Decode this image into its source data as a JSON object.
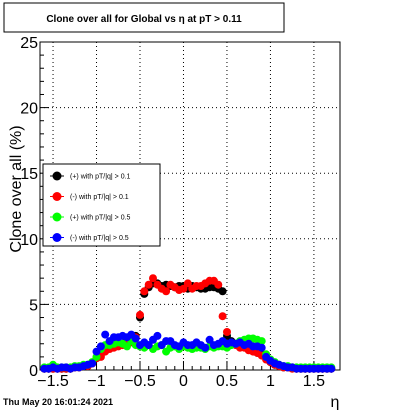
{
  "title": "Clone  over all for Global vs   η at pT > 0.11",
  "datestamp": "Thu May 20 16:01:24 2021",
  "chart_data": {
    "type": "scatter",
    "title": "Clone  over all for Global vs   η at pT > 0.11",
    "xlabel": "η",
    "ylabel": "Clone  over all (%)",
    "xlim": [
      -1.65,
      1.8
    ],
    "ylim": [
      0,
      25
    ],
    "x_ticks": [
      -1.5,
      -1,
      -0.5,
      0,
      0.5,
      1,
      1.5
    ],
    "x_tick_labels": [
      "−1.5",
      "−1",
      "−0.5",
      "0",
      "0.5",
      "1",
      "1.5"
    ],
    "y_ticks": [
      0,
      5,
      10,
      15,
      20,
      25
    ],
    "y_tick_labels": [
      "0",
      "5",
      "10",
      "15",
      "20",
      "25"
    ],
    "grid": true,
    "legend_position": "left, middle",
    "series": [
      {
        "name": "(+) with pT/|q| > 0.1",
        "color": "#000000",
        "x": [
          -1.6,
          -1.55,
          -1.5,
          -1.45,
          -1.4,
          -1.35,
          -1.3,
          -1.25,
          -1.2,
          -1.15,
          -1.1,
          -1.05,
          -1.0,
          -0.95,
          -0.9,
          -0.85,
          -0.8,
          -0.75,
          -0.7,
          -0.65,
          -0.6,
          -0.55,
          -0.5,
          -0.45,
          -0.4,
          -0.35,
          -0.3,
          -0.25,
          -0.2,
          -0.15,
          -0.1,
          -0.05,
          0.0,
          0.05,
          0.1,
          0.15,
          0.2,
          0.25,
          0.3,
          0.35,
          0.4,
          0.45,
          0.5,
          0.55,
          0.6,
          0.65,
          0.7,
          0.75,
          0.8,
          0.85,
          0.9,
          0.95,
          1.0,
          1.05,
          1.1,
          1.15,
          1.2,
          1.25,
          1.3,
          1.35,
          1.4,
          1.45,
          1.5,
          1.55,
          1.6,
          1.65,
          1.7
        ],
        "y": [
          0.1,
          0.1,
          0.1,
          0.1,
          0.1,
          0.1,
          0.1,
          0.2,
          0.2,
          0.3,
          0.3,
          0.5,
          0.9,
          1.2,
          1.5,
          1.7,
          1.8,
          1.9,
          2.0,
          2.2,
          2.4,
          2.6,
          4.0,
          5.8,
          6.3,
          6.6,
          6.6,
          6.4,
          6.5,
          6.4,
          6.3,
          6.4,
          6.4,
          6.2,
          6.4,
          6.3,
          6.2,
          6.2,
          6.3,
          6.3,
          6.2,
          6.0,
          2.6,
          2.2,
          2.0,
          1.8,
          1.8,
          1.6,
          1.5,
          1.3,
          1.2,
          0.9,
          0.6,
          0.4,
          0.3,
          0.2,
          0.2,
          0.2,
          0.1,
          0.1,
          0.1,
          0.1,
          0.1,
          0.1,
          0.1,
          0.1,
          0.1
        ]
      },
      {
        "name": "(-) with pT/|q| > 0.1",
        "color": "#ff0000",
        "x": [
          -1.6,
          -1.55,
          -1.5,
          -1.45,
          -1.4,
          -1.35,
          -1.3,
          -1.25,
          -1.2,
          -1.15,
          -1.1,
          -1.05,
          -1.0,
          -0.95,
          -0.9,
          -0.85,
          -0.8,
          -0.75,
          -0.7,
          -0.65,
          -0.6,
          -0.55,
          -0.5,
          -0.45,
          -0.4,
          -0.35,
          -0.3,
          -0.25,
          -0.2,
          -0.15,
          -0.1,
          -0.05,
          0.0,
          0.05,
          0.1,
          0.15,
          0.2,
          0.25,
          0.3,
          0.35,
          0.4,
          0.45,
          0.5,
          0.55,
          0.6,
          0.65,
          0.7,
          0.75,
          0.8,
          0.85,
          0.9,
          0.95,
          1.0,
          1.05,
          1.1,
          1.15,
          1.2,
          1.25,
          1.3,
          1.35,
          1.4,
          1.45,
          1.5,
          1.55,
          1.6,
          1.65,
          1.7
        ],
        "y": [
          0.1,
          0.1,
          0.1,
          0.1,
          0.1,
          0.1,
          0.1,
          0.2,
          0.2,
          0.3,
          0.3,
          0.5,
          0.9,
          1.0,
          1.4,
          1.6,
          1.7,
          1.8,
          1.9,
          2.0,
          2.1,
          2.5,
          4.2,
          6.0,
          6.5,
          7.0,
          6.5,
          6.2,
          6.0,
          6.5,
          6.3,
          6.1,
          6.2,
          6.6,
          6.2,
          6.4,
          6.4,
          6.6,
          6.8,
          6.8,
          6.5,
          4.1,
          2.9,
          2.0,
          1.9,
          1.7,
          1.7,
          1.5,
          1.4,
          1.3,
          1.1,
          0.8,
          0.6,
          0.4,
          0.3,
          0.2,
          0.2,
          0.1,
          0.1,
          0.1,
          0.1,
          0.1,
          0.1,
          0.1,
          0.1,
          0.1,
          0.1
        ]
      },
      {
        "name": "(+) with pT/|q| > 0.5",
        "color": "#00ff00",
        "x": [
          -1.6,
          -1.55,
          -1.5,
          -1.45,
          -1.4,
          -1.35,
          -1.3,
          -1.25,
          -1.2,
          -1.15,
          -1.1,
          -1.05,
          -1.0,
          -0.95,
          -0.9,
          -0.85,
          -0.8,
          -0.75,
          -0.7,
          -0.65,
          -0.6,
          -0.55,
          -0.5,
          -0.45,
          -0.4,
          -0.35,
          -0.3,
          -0.25,
          -0.2,
          -0.15,
          -0.1,
          -0.05,
          0.0,
          0.05,
          0.1,
          0.15,
          0.2,
          0.25,
          0.3,
          0.35,
          0.4,
          0.45,
          0.5,
          0.55,
          0.6,
          0.65,
          0.7,
          0.75,
          0.8,
          0.85,
          0.9,
          0.95,
          1.0,
          1.05,
          1.1,
          1.15,
          1.2,
          1.25,
          1.3,
          1.35,
          1.4,
          1.45,
          1.5,
          1.55,
          1.6,
          1.65,
          1.7
        ],
        "y": [
          0.2,
          0.2,
          0.4,
          0.2,
          0.2,
          0.2,
          0.2,
          0.3,
          0.3,
          0.4,
          0.4,
          0.6,
          1.0,
          1.6,
          1.9,
          1.9,
          2.0,
          2.1,
          2.0,
          1.8,
          2.2,
          1.9,
          1.8,
          1.7,
          1.9,
          1.6,
          1.8,
          1.9,
          1.4,
          1.7,
          1.8,
          1.6,
          1.8,
          1.7,
          1.6,
          1.7,
          1.7,
          1.6,
          1.8,
          1.7,
          1.8,
          1.8,
          1.7,
          1.9,
          2.0,
          2.2,
          2.3,
          2.4,
          2.4,
          2.3,
          2.2,
          1.2,
          0.8,
          0.6,
          0.4,
          0.3,
          0.3,
          0.2,
          0.2,
          0.2,
          0.2,
          0.2,
          0.2,
          0.2,
          0.2,
          0.2,
          0.2
        ]
      },
      {
        "name": "(-) with pT/|q| > 0.5",
        "color": "#0000ff",
        "x": [
          -1.6,
          -1.55,
          -1.5,
          -1.45,
          -1.4,
          -1.35,
          -1.3,
          -1.25,
          -1.2,
          -1.15,
          -1.1,
          -1.05,
          -1.0,
          -0.95,
          -0.9,
          -0.85,
          -0.8,
          -0.75,
          -0.7,
          -0.65,
          -0.6,
          -0.55,
          -0.5,
          -0.45,
          -0.4,
          -0.35,
          -0.3,
          -0.25,
          -0.2,
          -0.15,
          -0.1,
          -0.05,
          0.0,
          0.05,
          0.1,
          0.15,
          0.2,
          0.25,
          0.3,
          0.35,
          0.4,
          0.45,
          0.5,
          0.55,
          0.6,
          0.65,
          0.7,
          0.75,
          0.8,
          0.85,
          0.9,
          0.95,
          1.0,
          1.05,
          1.1,
          1.15,
          1.2,
          1.25,
          1.3,
          1.35,
          1.4,
          1.45,
          1.5,
          1.55,
          1.6,
          1.65,
          1.7
        ],
        "y": [
          0.1,
          0.1,
          0.2,
          0.1,
          0.2,
          0.2,
          0.1,
          0.2,
          0.2,
          0.3,
          0.4,
          0.5,
          1.4,
          1.8,
          2.7,
          2.2,
          2.5,
          2.5,
          2.6,
          2.5,
          2.7,
          2.4,
          1.9,
          2.1,
          1.9,
          2.3,
          2.6,
          1.9,
          2.2,
          2.2,
          1.9,
          1.8,
          2.1,
          1.9,
          1.9,
          2.1,
          1.9,
          1.7,
          2.3,
          1.9,
          2.0,
          2.2,
          2.0,
          2.1,
          2.0,
          2.1,
          1.9,
          2.0,
          1.8,
          1.8,
          1.7,
          1.0,
          0.7,
          0.5,
          0.4,
          0.3,
          0.2,
          0.2,
          0.1,
          0.1,
          0.1,
          0.1,
          0.1,
          0.1,
          0.1,
          0.1,
          0.1
        ]
      }
    ]
  }
}
